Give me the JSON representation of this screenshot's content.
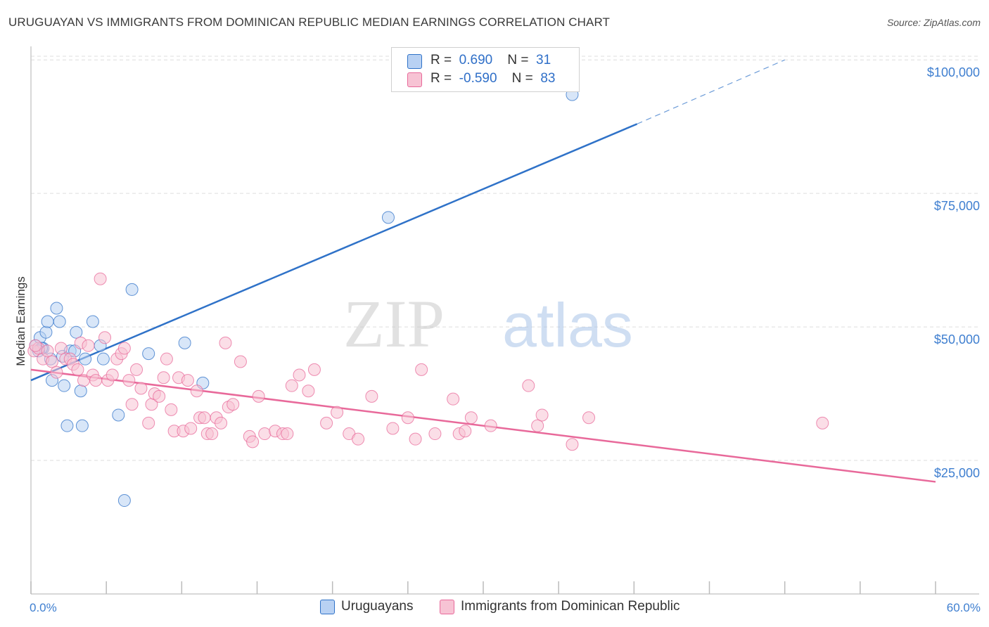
{
  "title": "URUGUAYAN VS IMMIGRANTS FROM DOMINICAN REPUBLIC MEDIAN EARNINGS CORRELATION CHART",
  "source": "Source: ZipAtlas.com",
  "watermark": {
    "zip": "ZIP",
    "atlas": "atlas"
  },
  "colors": {
    "blue": "#2f72c8",
    "blue_fill": "#b8d1f3",
    "pink": "#e8699a",
    "pink_fill": "#f7c3d4",
    "tick_text": "#3f7fd0",
    "grid": "#dddddd"
  },
  "legend": {
    "rows": [
      {
        "r_label": "R =",
        "r_value": "0.690",
        "n_label": "N =",
        "n_value": "31"
      },
      {
        "r_label": "R =",
        "r_value": "-0.590",
        "n_label": "N =",
        "n_value": "83"
      }
    ]
  },
  "bottom_legend": [
    "Uruguayans",
    "Immigrants from Dominican Republic"
  ],
  "chart_data": {
    "type": "scatter",
    "title": "URUGUAYAN VS IMMIGRANTS FROM DOMINICAN REPUBLIC MEDIAN EARNINGS CORRELATION CHART",
    "xlabel": "",
    "ylabel": "Median Earnings",
    "xlim": [
      0,
      60
    ],
    "ylim": [
      0,
      102000
    ],
    "x_tick_labels": [
      "0.0%",
      "60.0%"
    ],
    "y_ticks": [
      25000,
      50000,
      75000,
      100000
    ],
    "y_tick_labels": [
      "$25,000",
      "$50,000",
      "$75,000",
      "$100,000"
    ],
    "grid": true,
    "series": [
      {
        "name": "Uruguayans",
        "color": "blue",
        "points": [
          [
            0.3,
            46.5
          ],
          [
            0.6,
            48
          ],
          [
            0.8,
            46
          ],
          [
            1.0,
            49
          ],
          [
            1.1,
            51
          ],
          [
            1.3,
            44
          ],
          [
            1.4,
            40
          ],
          [
            1.7,
            53.5
          ],
          [
            1.9,
            51
          ],
          [
            2.1,
            44.5
          ],
          [
            2.2,
            39
          ],
          [
            2.4,
            31.5
          ],
          [
            2.6,
            45.5
          ],
          [
            2.9,
            45.5
          ],
          [
            3.0,
            49
          ],
          [
            3.3,
            38
          ],
          [
            3.4,
            31.5
          ],
          [
            3.6,
            44
          ],
          [
            4.1,
            51
          ],
          [
            4.6,
            46.5
          ],
          [
            4.8,
            44
          ],
          [
            5.8,
            33.5
          ],
          [
            6.2,
            17.5
          ],
          [
            6.7,
            57
          ],
          [
            7.8,
            45
          ],
          [
            10.2,
            47
          ],
          [
            11.4,
            39.5
          ],
          [
            23.7,
            70.5
          ],
          [
            35.9,
            93.5
          ],
          [
            0.7,
            46
          ],
          [
            0.5,
            45.5
          ]
        ],
        "trend": {
          "x0": 0,
          "y0": 40,
          "x1": 40.2,
          "y1": 88,
          "dash_x1": 50,
          "dash_y1": 100
        }
      },
      {
        "name": "Immigrants from Dominican Republic",
        "color": "pink",
        "points": [
          [
            0.2,
            45.5
          ],
          [
            0.5,
            46
          ],
          [
            0.8,
            44
          ],
          [
            1.1,
            45.5
          ],
          [
            1.4,
            43.5
          ],
          [
            1.7,
            41.5
          ],
          [
            2.0,
            46
          ],
          [
            2.3,
            44
          ],
          [
            2.6,
            44
          ],
          [
            2.8,
            43
          ],
          [
            3.1,
            42
          ],
          [
            3.3,
            47
          ],
          [
            3.5,
            40
          ],
          [
            3.8,
            46.5
          ],
          [
            4.1,
            41
          ],
          [
            4.3,
            40
          ],
          [
            4.6,
            59
          ],
          [
            4.9,
            48
          ],
          [
            5.1,
            40
          ],
          [
            5.4,
            41
          ],
          [
            5.7,
            44
          ],
          [
            6.0,
            45
          ],
          [
            6.2,
            46
          ],
          [
            6.5,
            40
          ],
          [
            6.7,
            35.5
          ],
          [
            7.0,
            42
          ],
          [
            7.3,
            38.5
          ],
          [
            7.8,
            32
          ],
          [
            8.0,
            35.5
          ],
          [
            8.2,
            37.5
          ],
          [
            8.5,
            37
          ],
          [
            8.8,
            40.5
          ],
          [
            9.0,
            44
          ],
          [
            9.3,
            34.5
          ],
          [
            9.5,
            30.5
          ],
          [
            9.8,
            40.5
          ],
          [
            10.1,
            30.5
          ],
          [
            10.4,
            40
          ],
          [
            10.6,
            31
          ],
          [
            11.0,
            38
          ],
          [
            11.2,
            33
          ],
          [
            11.5,
            33
          ],
          [
            11.7,
            30
          ],
          [
            12.0,
            30
          ],
          [
            12.3,
            33
          ],
          [
            12.6,
            32
          ],
          [
            12.9,
            47
          ],
          [
            13.1,
            35
          ],
          [
            13.4,
            35.5
          ],
          [
            13.9,
            43.5
          ],
          [
            14.5,
            29.5
          ],
          [
            14.7,
            28.5
          ],
          [
            15.1,
            37
          ],
          [
            15.5,
            30
          ],
          [
            16.2,
            30.5
          ],
          [
            16.7,
            30
          ],
          [
            17.0,
            30
          ],
          [
            17.3,
            39
          ],
          [
            17.8,
            41
          ],
          [
            18.4,
            38
          ],
          [
            18.8,
            42
          ],
          [
            19.6,
            32
          ],
          [
            20.3,
            34
          ],
          [
            21.1,
            30
          ],
          [
            21.7,
            29
          ],
          [
            22.6,
            37
          ],
          [
            24.0,
            31
          ],
          [
            25.0,
            33
          ],
          [
            25.5,
            29
          ],
          [
            25.9,
            42
          ],
          [
            26.8,
            30
          ],
          [
            28.0,
            36.5
          ],
          [
            28.4,
            30
          ],
          [
            28.8,
            30.5
          ],
          [
            29.2,
            33
          ],
          [
            30.5,
            31.5
          ],
          [
            33.0,
            39
          ],
          [
            33.6,
            31.5
          ],
          [
            33.9,
            33.5
          ],
          [
            35.9,
            28
          ],
          [
            37.0,
            33
          ],
          [
            52.5,
            32
          ],
          [
            0.3,
            46.5
          ]
        ],
        "trend": {
          "x0": 0,
          "y0": 42,
          "x1": 60,
          "y1": 21
        }
      }
    ]
  }
}
